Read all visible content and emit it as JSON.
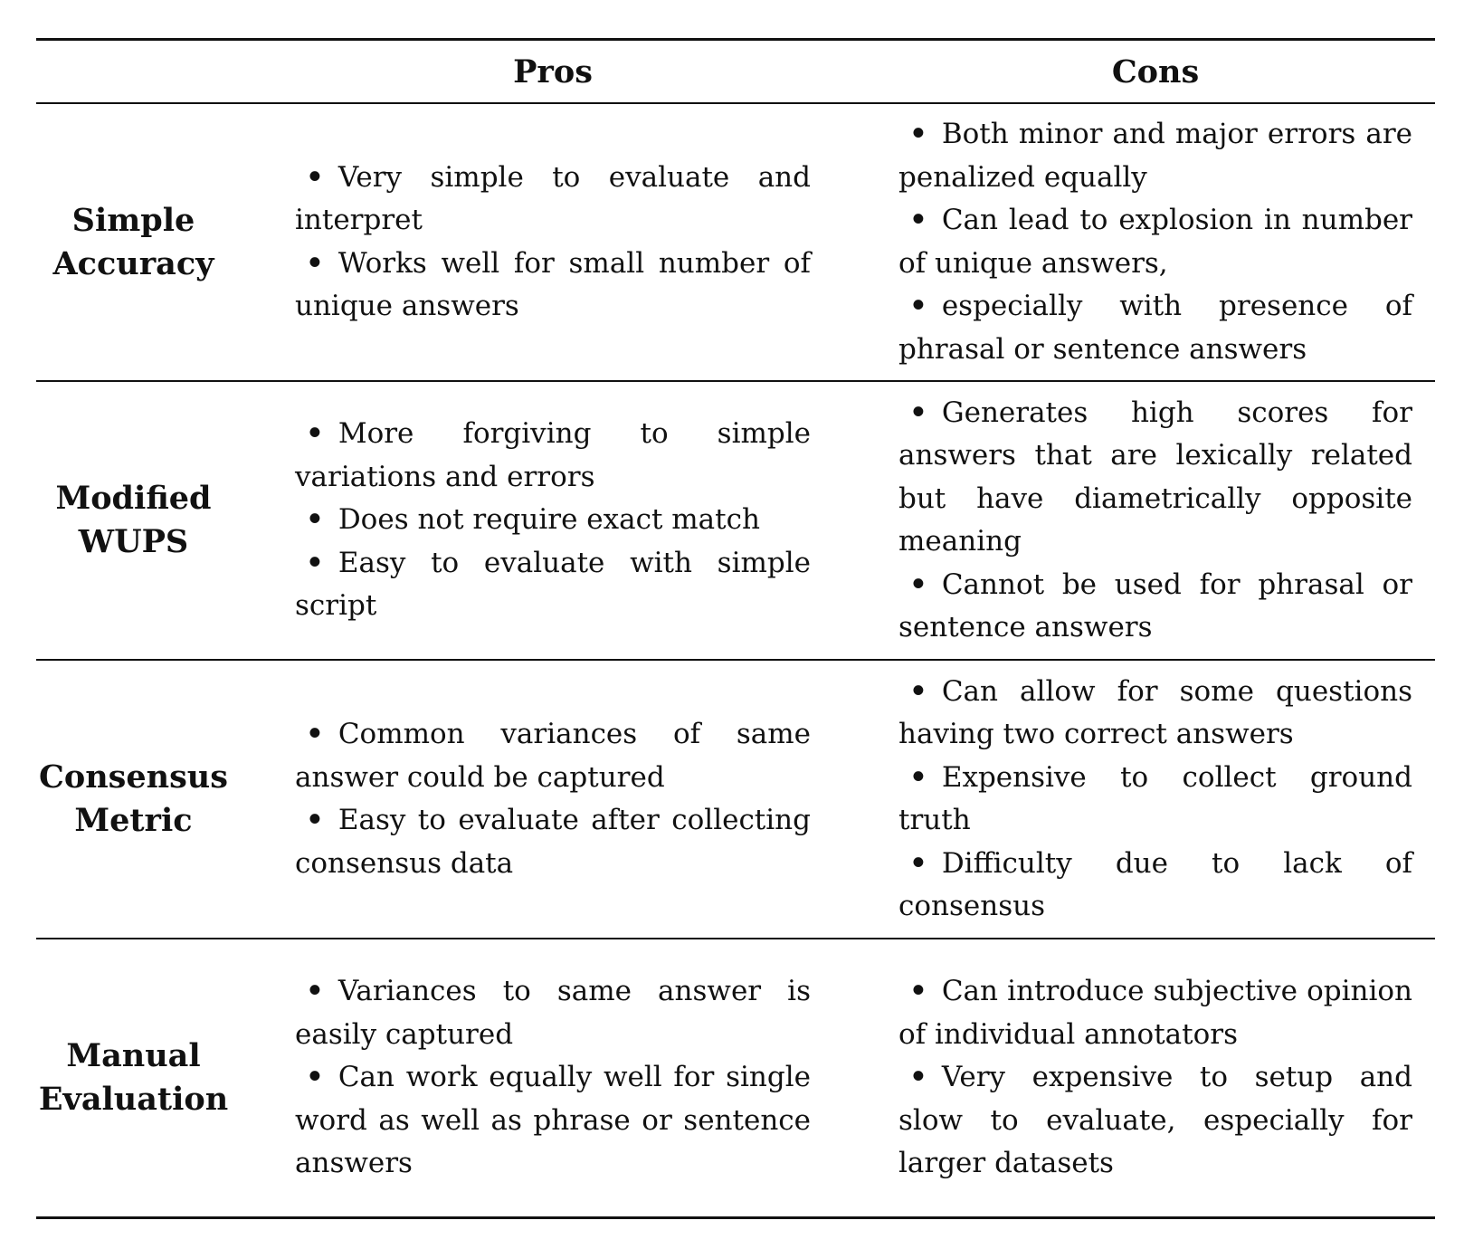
{
  "header": {
    "pros": "Pros",
    "cons": "Cons"
  },
  "bullet_symbol": "•",
  "rows": [
    {
      "label_lines": [
        "Simple",
        "Accuracy"
      ],
      "pros": [
        "Very simple to evaluate and interpret",
        "Works well for small number of unique answers"
      ],
      "cons": [
        "Both minor and major errors are penalized equally",
        "Can lead to explosion in number of unique answers,",
        "especially with presence of phrasal or sentence answers"
      ]
    },
    {
      "label_lines": [
        "Modified",
        "WUPS"
      ],
      "pros": [
        "More forgiving to simple variations and errors",
        "Does not require exact match",
        "Easy to evaluate with simple script"
      ],
      "cons": [
        "Generates high scores for answers that are lexically related but have diametrically opposite meaning",
        "Cannot be used for phrasal or sentence answers"
      ]
    },
    {
      "label_lines": [
        "Consensus",
        "Metric"
      ],
      "pros": [
        "Common variances of same answer could be captured",
        "Easy to evaluate after collecting consensus data"
      ],
      "cons": [
        "Can allow for some questions having two correct answers",
        "Expensive to collect ground truth",
        "Difficulty due to lack of consensus"
      ]
    },
    {
      "label_lines": [
        "Manual",
        "Evaluation"
      ],
      "pros": [
        "Variances to same answer is easily captured",
        "Can work equally well for single word as well as phrase or sentence answers"
      ],
      "cons": [
        "Can introduce subjective opinion of individual annotators",
        "Very expensive to setup and slow to evaluate, especially for larger datasets"
      ]
    }
  ]
}
